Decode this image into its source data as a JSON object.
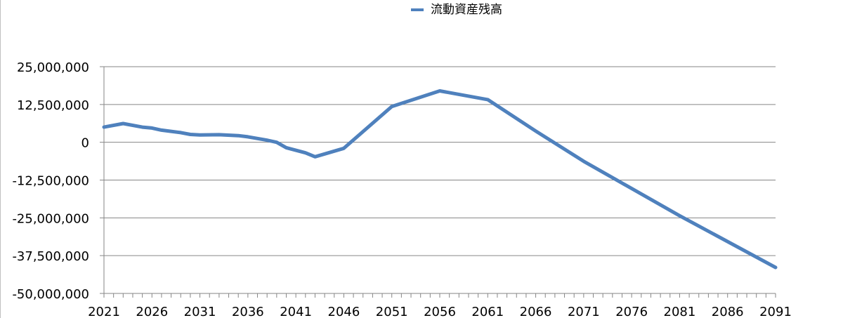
{
  "chart_data": {
    "type": "line",
    "title": "",
    "xlabel": "",
    "ylabel": "",
    "legend_position": "top",
    "grid": true,
    "x_tick_labels": [
      "2021",
      "2026",
      "2031",
      "2036",
      "2041",
      "2046",
      "2051",
      "2056",
      "2061",
      "2066",
      "2071",
      "2076",
      "2081",
      "2086",
      "2091"
    ],
    "y_tick_labels": [
      "25,000,000",
      "12,500,000",
      "0",
      "-12,500,000",
      "-25,000,000",
      "-37,500,000",
      "-50,000,000"
    ],
    "ylim": [
      -50000000,
      25000000
    ],
    "xlim": [
      2021,
      2091
    ],
    "series": [
      {
        "name": "流動資産残高",
        "color": "#4f81bd",
        "x": [
          2021,
          2023,
          2025,
          2026,
          2027,
          2029,
          2030,
          2031,
          2033,
          2035,
          2036,
          2038,
          2039,
          2040,
          2042,
          2043,
          2046,
          2051,
          2056,
          2061,
          2066,
          2071,
          2081,
          2091
        ],
        "y": [
          5000000,
          6200000,
          5000000,
          4700000,
          4000000,
          3200000,
          2600000,
          2400000,
          2500000,
          2200000,
          1800000,
          700000,
          0,
          -1800000,
          -3500000,
          -4800000,
          -2000000,
          11800000,
          17000000,
          14100000,
          3700000,
          -6300000,
          -24300000,
          -41400000
        ]
      }
    ]
  }
}
